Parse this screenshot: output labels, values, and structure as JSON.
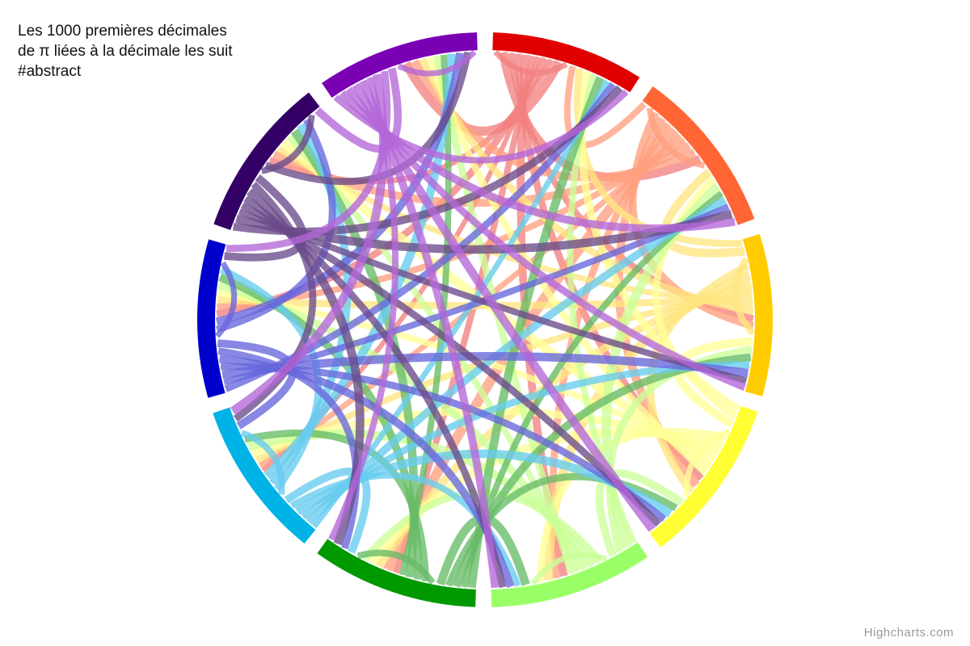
{
  "chart_data": {
    "type": "dependency-wheel",
    "title": "Les 1000 premières décimales\nde π liées à la décimale les suit\n#abstract",
    "credit": "Highcharts.com",
    "nodes": [
      {
        "id": "0",
        "color": "#e00000"
      },
      {
        "id": "1",
        "color": "#ff6633"
      },
      {
        "id": "2",
        "color": "#ffcc00"
      },
      {
        "id": "3",
        "color": "#ffff33"
      },
      {
        "id": "4",
        "color": "#99ff66"
      },
      {
        "id": "5",
        "color": "#009900"
      },
      {
        "id": "6",
        "color": "#00b3e6"
      },
      {
        "id": "7",
        "color": "#0000cc"
      },
      {
        "id": "8",
        "color": "#330066"
      },
      {
        "id": "9",
        "color": "#7a00b3"
      }
    ],
    "link_colors": [
      "#f28080",
      "#ffa080",
      "#ffe680",
      "#ffff99",
      "#ccff99",
      "#66bb66",
      "#66ccee",
      "#6666dd",
      "#6a4a8a",
      "#b366d9"
    ],
    "link_counts": [
      [
        8,
        12,
        9,
        10,
        11,
        9,
        7,
        10,
        8,
        13
      ],
      [
        9,
        9,
        11,
        12,
        10,
        14,
        8,
        9,
        11,
        11
      ],
      [
        10,
        12,
        9,
        11,
        13,
        11,
        9,
        10,
        8,
        10
      ],
      [
        11,
        10,
        12,
        8,
        10,
        12,
        11,
        9,
        13,
        10
      ],
      [
        9,
        13,
        10,
        11,
        8,
        10,
        12,
        11,
        9,
        10
      ],
      [
        12,
        9,
        11,
        10,
        12,
        9,
        10,
        11,
        12,
        9
      ],
      [
        8,
        11,
        10,
        12,
        9,
        11,
        9,
        10,
        11,
        12
      ],
      [
        10,
        9,
        12,
        10,
        11,
        10,
        11,
        8,
        10,
        11
      ],
      [
        11,
        12,
        9,
        10,
        10,
        12,
        10,
        11,
        9,
        10
      ],
      [
        9,
        11,
        10,
        12,
        11,
        9,
        12,
        10,
        11,
        8
      ]
    ]
  }
}
